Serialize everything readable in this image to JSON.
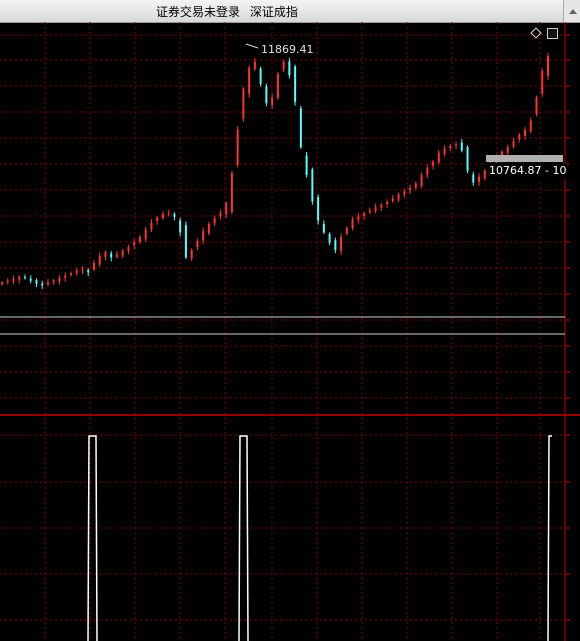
{
  "window": {
    "title_parts": [
      "证券交易未登录",
      "深证成指"
    ]
  },
  "chart": {
    "peak_label": "11869.41",
    "price_tag": "10764.87 - 10",
    "colors": {
      "up": "#ff3333",
      "down": "#54ffff",
      "grid_red": "#8a0000",
      "separator": "#c00000",
      "indicator": "#ffffff"
    }
  },
  "chart_data": {
    "type": "candlestick",
    "title": "深证成指",
    "annotations": [
      {
        "label": "11869.41",
        "meaning": "peak high"
      },
      {
        "label": "10764.87 - 10",
        "meaning": "price tag"
      }
    ],
    "close_series": [
      10258,
      10270,
      10283,
      10297,
      10290,
      10270,
      10250,
      10241,
      10258,
      10272,
      10291,
      10305,
      10322,
      10340,
      10346,
      10328,
      10392,
      10439,
      10466,
      10429,
      10450,
      10477,
      10500,
      10533,
      10571,
      10620,
      10666,
      10701,
      10726,
      10731,
      10705,
      10600,
      10430,
      10480,
      10540,
      10610,
      10660,
      10697,
      10732,
      10800,
      11002,
      11300,
      11580,
      11720,
      11764,
      11610,
      11480,
      11520,
      11680,
      11760,
      11670,
      11490,
      11180,
      10990,
      10810,
      10680,
      10600,
      10530,
      10480,
      10570,
      10630,
      10690,
      10710,
      10730,
      10750,
      10772,
      10788,
      10808,
      10832,
      10860,
      10880,
      10902,
      10935,
      10990,
      11040,
      11082,
      11143,
      11170,
      11190,
      11200,
      11157,
      11020,
      10940,
      10980,
      11020,
      11060,
      11108,
      11150,
      11180,
      11221,
      11265,
      11300,
      11360,
      11520,
      11700,
      11800
    ],
    "indicator_spikes": [
      "around x≈92",
      "around x≈243",
      "at right edge x≈550"
    ]
  }
}
